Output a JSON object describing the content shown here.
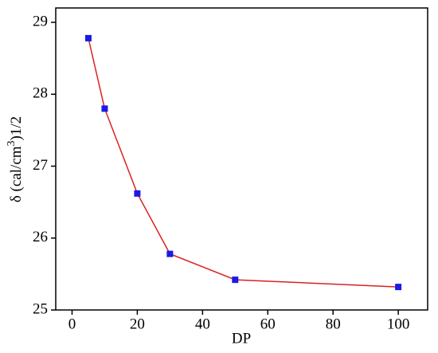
{
  "chart_data": {
    "type": "line",
    "x_label": "DP",
    "y_label": [
      "δ (cal/cm",
      "3",
      ")1/2"
    ],
    "x": [
      5,
      10,
      20,
      30,
      50,
      100
    ],
    "series": [
      {
        "color": "#dd2020",
        "marker_color": "#1a1ae6",
        "values": [
          28.78,
          27.8,
          26.62,
          25.78,
          25.42,
          25.32
        ]
      }
    ],
    "xlim": [
      -5,
      109
    ],
    "xticks": [
      0,
      20,
      40,
      60,
      80,
      100
    ],
    "ylim": [
      25,
      29.2
    ],
    "yticks": [
      25,
      26,
      27,
      28,
      29
    ]
  }
}
